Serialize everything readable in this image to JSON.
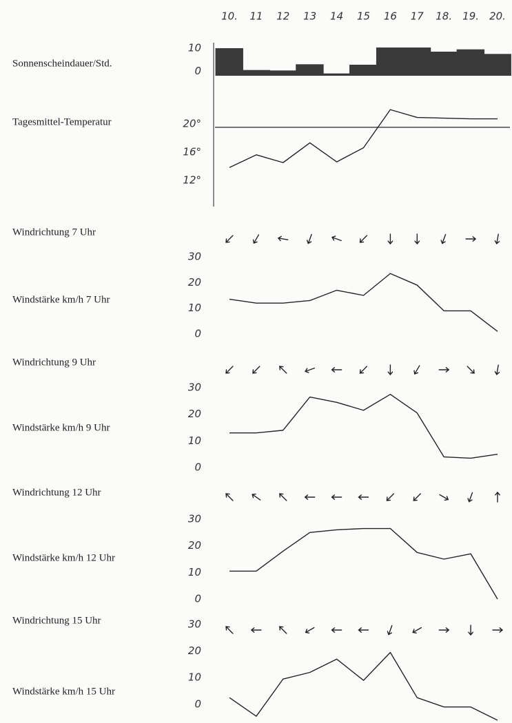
{
  "chart_data": {
    "type": "panels",
    "categories": [
      "10.",
      "11",
      "12",
      "13",
      "14",
      "15",
      "16",
      "17",
      "18.",
      "19.",
      "20."
    ],
    "panels": [
      {
        "type": "bar",
        "label": "Sonnenscheindauer/Std.",
        "color": "#3a3a3a",
        "ylim": [
          -2,
          10
        ],
        "yticks": [
          0,
          10
        ],
        "values": [
          10,
          0.5,
          0.3,
          3,
          -1,
          2.8,
          10.3,
          10.3,
          8.5,
          9.5,
          7.5
        ]
      },
      {
        "type": "line",
        "label": "Tagesmittel-Temperatur",
        "color": "#222222",
        "ylim": [
          11,
          23
        ],
        "yticks": [
          {
            "value": 12,
            "label": "12°"
          },
          {
            "value": 16,
            "label": "16°"
          },
          {
            "value": 20,
            "label": "20°"
          }
        ],
        "reference": 19.5,
        "values": [
          13.8,
          15.6,
          14.5,
          17.3,
          14.6,
          16.6,
          22,
          20.9,
          20.8,
          20.7,
          20.7
        ]
      },
      {
        "type": "arrows",
        "label": "Windrichtung 7 Uhr",
        "color": "#222222",
        "values": [
          225,
          240,
          170,
          250,
          160,
          225,
          270,
          270,
          250,
          0,
          260
        ]
      },
      {
        "type": "line",
        "label": "Windstärke km/h 7 Uhr",
        "color": "#222222",
        "ylim": [
          0,
          30
        ],
        "yticks": [
          0,
          10,
          20,
          30
        ],
        "values": [
          13.5,
          12,
          12,
          13,
          17,
          15,
          23.5,
          19,
          9,
          9,
          1
        ]
      },
      {
        "type": "arrows",
        "label": "Windrichtung 9 Uhr",
        "color": "#222222",
        "values": [
          225,
          225,
          135,
          200,
          180,
          225,
          270,
          240,
          0,
          315,
          260
        ]
      },
      {
        "type": "line",
        "label": "Windstärke km/h 9 Uhr",
        "color": "#222222",
        "ylim": [
          0,
          30
        ],
        "yticks": [
          0,
          10,
          20,
          30
        ],
        "values": [
          13,
          13,
          14,
          26.5,
          24.5,
          21.5,
          27.5,
          20.5,
          4,
          3.5,
          5
        ]
      },
      {
        "type": "arrows",
        "label": "Windrichtung 12 Uhr",
        "color": "#222222",
        "values": [
          135,
          145,
          135,
          180,
          180,
          180,
          225,
          225,
          330,
          250,
          90
        ]
      },
      {
        "type": "line",
        "label": "Windstärke km/h 12 Uhr",
        "color": "#222222",
        "ylim": [
          0,
          30
        ],
        "yticks": [
          0,
          10,
          20,
          30
        ],
        "values": [
          10.5,
          10.5,
          18,
          25,
          26,
          26.5,
          26.5,
          17.5,
          15,
          17,
          0
        ]
      },
      {
        "type": "arrows",
        "label": "Windrichtung 15 Uhr",
        "color": "#222222",
        "values": [
          135,
          180,
          135,
          210,
          180,
          180,
          250,
          210,
          0,
          270,
          0
        ]
      },
      {
        "type": "line",
        "label": "Windstärke km/h 15 Uhr",
        "color": "#222222",
        "ylim": [
          -6,
          30
        ],
        "yticks": [
          0,
          10,
          20,
          30
        ],
        "values": [
          2.5,
          -4.5,
          9.5,
          12,
          17,
          9,
          19.5,
          2.5,
          -1,
          -1,
          -6
        ]
      }
    ]
  }
}
